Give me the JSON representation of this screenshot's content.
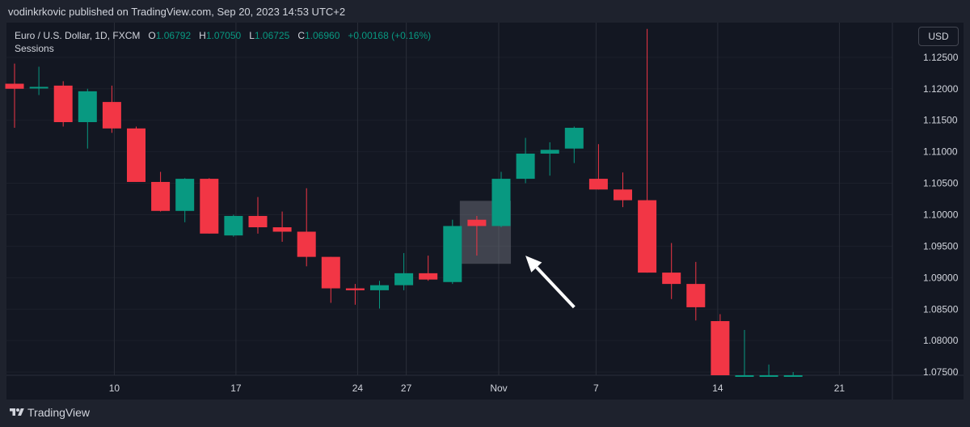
{
  "header": {
    "publisher_line": "vodinkrkovic published on TradingView.com, Sep 20, 2023 14:53 UTC+2"
  },
  "legend": {
    "symbol": "Euro / U.S. Dollar, 1D, FXCM",
    "o_key": "O",
    "o_val": "1.06792",
    "h_key": "H",
    "h_val": "1.07050",
    "l_key": "L",
    "l_val": "1.06725",
    "c_key": "C",
    "c_val": "1.06960",
    "change": "+0.00168 (+0.16%)",
    "indicator": "Sessions"
  },
  "currency_button": "USD",
  "footer": {
    "brand": "TradingView"
  },
  "colors": {
    "up": "#089981",
    "down": "#f23645",
    "background": "#131722",
    "grid": "#2a2e39"
  },
  "chart_data": {
    "type": "candlestick",
    "y_ticks": [
      "1.12500",
      "1.12000",
      "1.11500",
      "1.11000",
      "1.10500",
      "1.10000",
      "1.09500",
      "1.09000",
      "1.08500",
      "1.08000",
      "1.07500"
    ],
    "ylim": [
      1.0745,
      1.1305
    ],
    "x_ticks": [
      "10",
      "17",
      "24",
      "27",
      "Nov",
      "7",
      "14",
      "21"
    ],
    "candles": [
      {
        "o": 1.1208,
        "h": 1.124,
        "l": 1.1138,
        "c": 1.12
      },
      {
        "o": 1.1202,
        "h": 1.1235,
        "l": 1.119,
        "c": 1.1203
      },
      {
        "o": 1.1205,
        "h": 1.1212,
        "l": 1.114,
        "c": 1.1147
      },
      {
        "o": 1.1147,
        "h": 1.12,
        "l": 1.1105,
        "c": 1.1196
      },
      {
        "o": 1.1179,
        "h": 1.1205,
        "l": 1.113,
        "c": 1.1137
      },
      {
        "o": 1.1137,
        "h": 1.114,
        "l": 1.1052,
        "c": 1.1052
      },
      {
        "o": 1.1052,
        "h": 1.1068,
        "l": 1.1005,
        "c": 1.1006
      },
      {
        "o": 1.1006,
        "h": 1.1058,
        "l": 1.0988,
        "c": 1.1057
      },
      {
        "o": 1.1057,
        "h": 1.1058,
        "l": 1.097,
        "c": 1.097
      },
      {
        "o": 1.0967,
        "h": 1.1,
        "l": 1.0965,
        "c": 1.0998
      },
      {
        "o": 1.0998,
        "h": 1.1028,
        "l": 1.097,
        "c": 1.098
      },
      {
        "o": 1.098,
        "h": 1.1005,
        "l": 1.0957,
        "c": 1.0973
      },
      {
        "o": 1.0973,
        "h": 1.1042,
        "l": 1.0918,
        "c": 1.0933
      },
      {
        "o": 1.0933,
        "h": 1.0933,
        "l": 1.086,
        "c": 1.0883
      },
      {
        "o": 1.0883,
        "h": 1.089,
        "l": 1.0857,
        "c": 1.088
      },
      {
        "o": 1.088,
        "h": 1.0895,
        "l": 1.0851,
        "c": 1.0888
      },
      {
        "o": 1.0888,
        "h": 1.0939,
        "l": 1.088,
        "c": 1.0907
      },
      {
        "o": 1.0907,
        "h": 1.0935,
        "l": 1.0895,
        "c": 1.0897
      },
      {
        "o": 1.0893,
        "h": 1.0992,
        "l": 1.089,
        "c": 1.0982
      },
      {
        "o": 1.0992,
        "h": 1.0998,
        "l": 1.0935,
        "c": 1.0982
      },
      {
        "o": 1.0982,
        "h": 1.1068,
        "l": 1.098,
        "c": 1.1057
      },
      {
        "o": 1.1057,
        "h": 1.1122,
        "l": 1.105,
        "c": 1.1097
      },
      {
        "o": 1.1097,
        "h": 1.1115,
        "l": 1.1062,
        "c": 1.1103
      },
      {
        "o": 1.1105,
        "h": 1.114,
        "l": 1.1082,
        "c": 1.1138
      },
      {
        "o": 1.1057,
        "h": 1.1112,
        "l": 1.104,
        "c": 1.104
      },
      {
        "o": 1.104,
        "h": 1.1067,
        "l": 1.1012,
        "c": 1.1023
      },
      {
        "o": 1.1023,
        "h": 1.1295,
        "l": 1.0908,
        "c": 1.0908
      },
      {
        "o": 1.0908,
        "h": 1.0955,
        "l": 1.0866,
        "c": 1.089
      },
      {
        "o": 1.089,
        "h": 1.0925,
        "l": 1.0832,
        "c": 1.0853
      },
      {
        "o": 1.0831,
        "h": 1.0842,
        "l": 1.0745,
        "c": 1.0745
      },
      {
        "o": 1.0745,
        "h": 1.0817,
        "l": 1.0745,
        "c": 1.0745
      },
      {
        "o": 1.0745,
        "h": 1.0762,
        "l": 1.0745,
        "c": 1.0745
      },
      {
        "o": 1.0745,
        "h": 1.075,
        "l": 1.0745,
        "c": 1.0745
      }
    ],
    "highlight": {
      "x_from": 18.3,
      "x_to": 20.4,
      "y_from": 1.0922,
      "y_to": 1.1022
    },
    "annotation": {
      "type": "arrow",
      "x_tail": 23.0,
      "y_tail": 1.0853,
      "x_head": 21.0,
      "y_head": 1.0935
    }
  }
}
